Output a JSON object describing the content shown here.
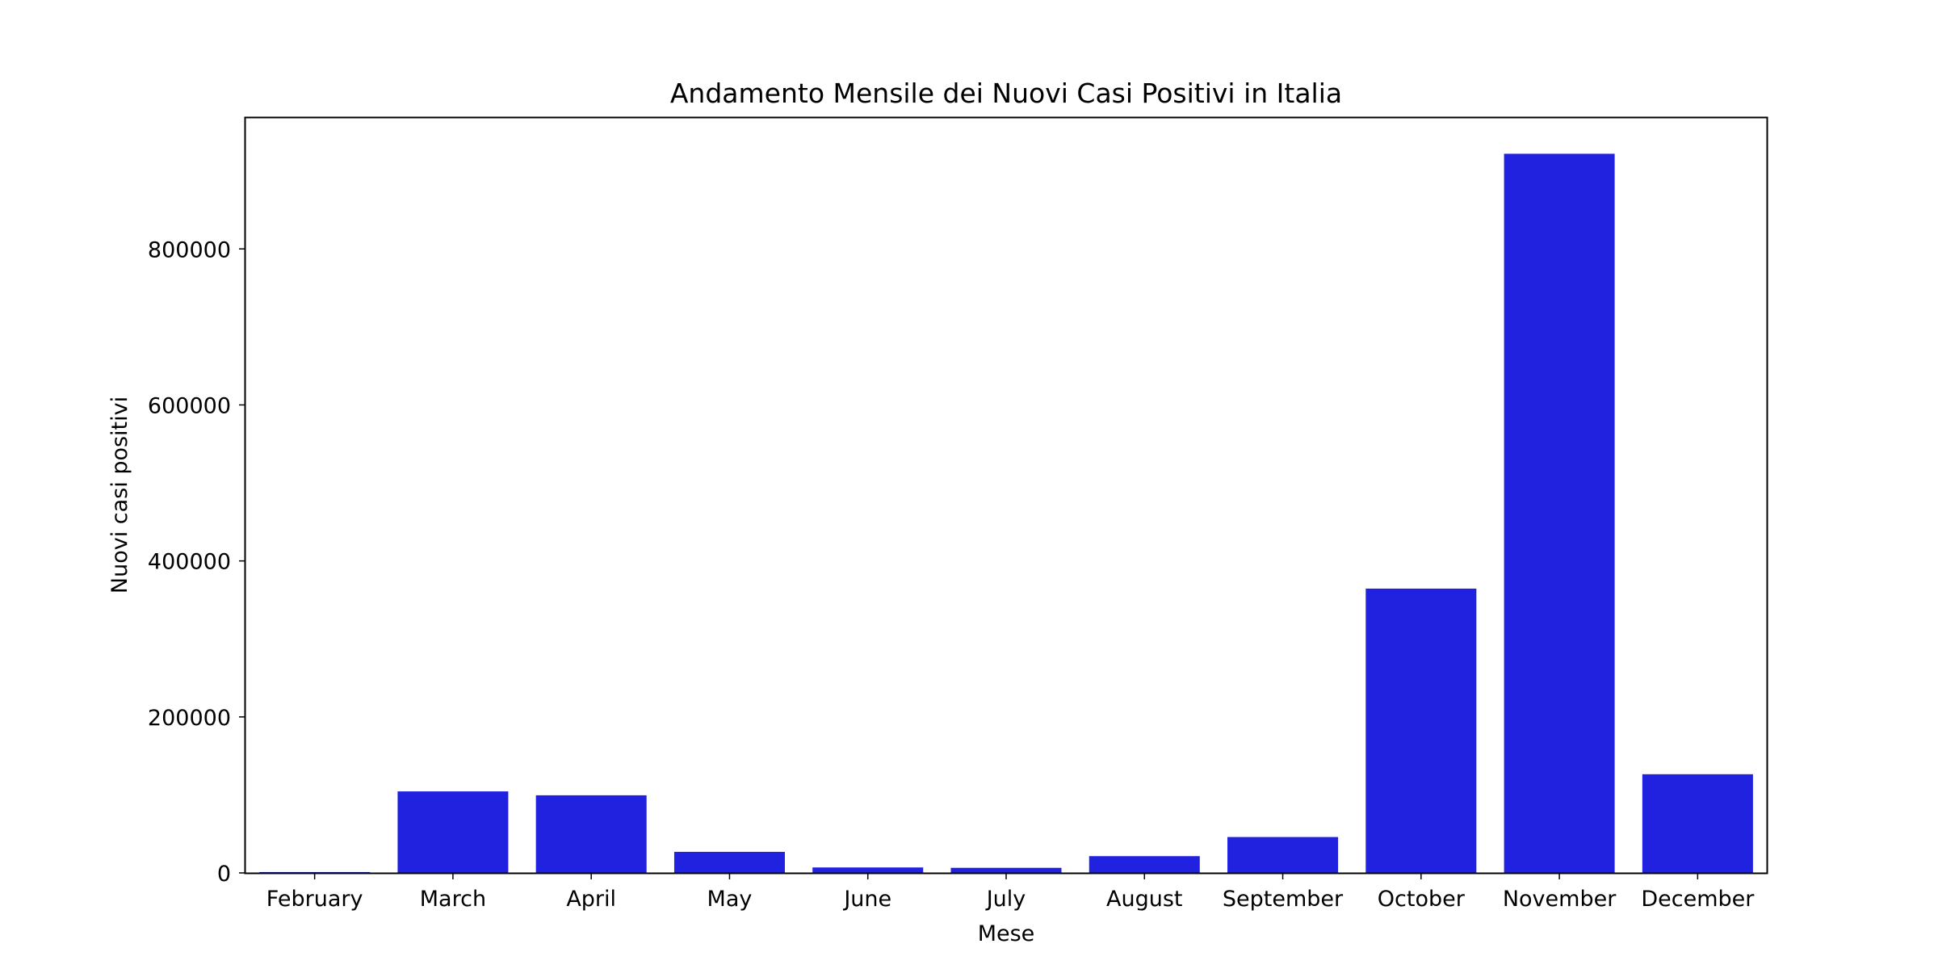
{
  "chart_data": {
    "type": "bar",
    "title": "Andamento Mensile dei Nuovi Casi Positivi in Italia",
    "xlabel": "Mese",
    "ylabel": "Nuovi casi positivi",
    "categories": [
      "February",
      "March",
      "April",
      "May",
      "June",
      "July",
      "August",
      "September",
      "October",
      "November",
      "December"
    ],
    "values": [
      1100,
      104500,
      99500,
      27000,
      7000,
      6500,
      21500,
      46000,
      364500,
      922000,
      126500
    ],
    "ylim": [
      0,
      968000
    ],
    "yticks": [
      0,
      200000,
      400000,
      600000,
      800000
    ],
    "ytick_labels": [
      "0",
      "200000",
      "400000",
      "600000",
      "800000"
    ],
    "bar_color": "#2121e0",
    "grid": false,
    "legend": "none"
  }
}
